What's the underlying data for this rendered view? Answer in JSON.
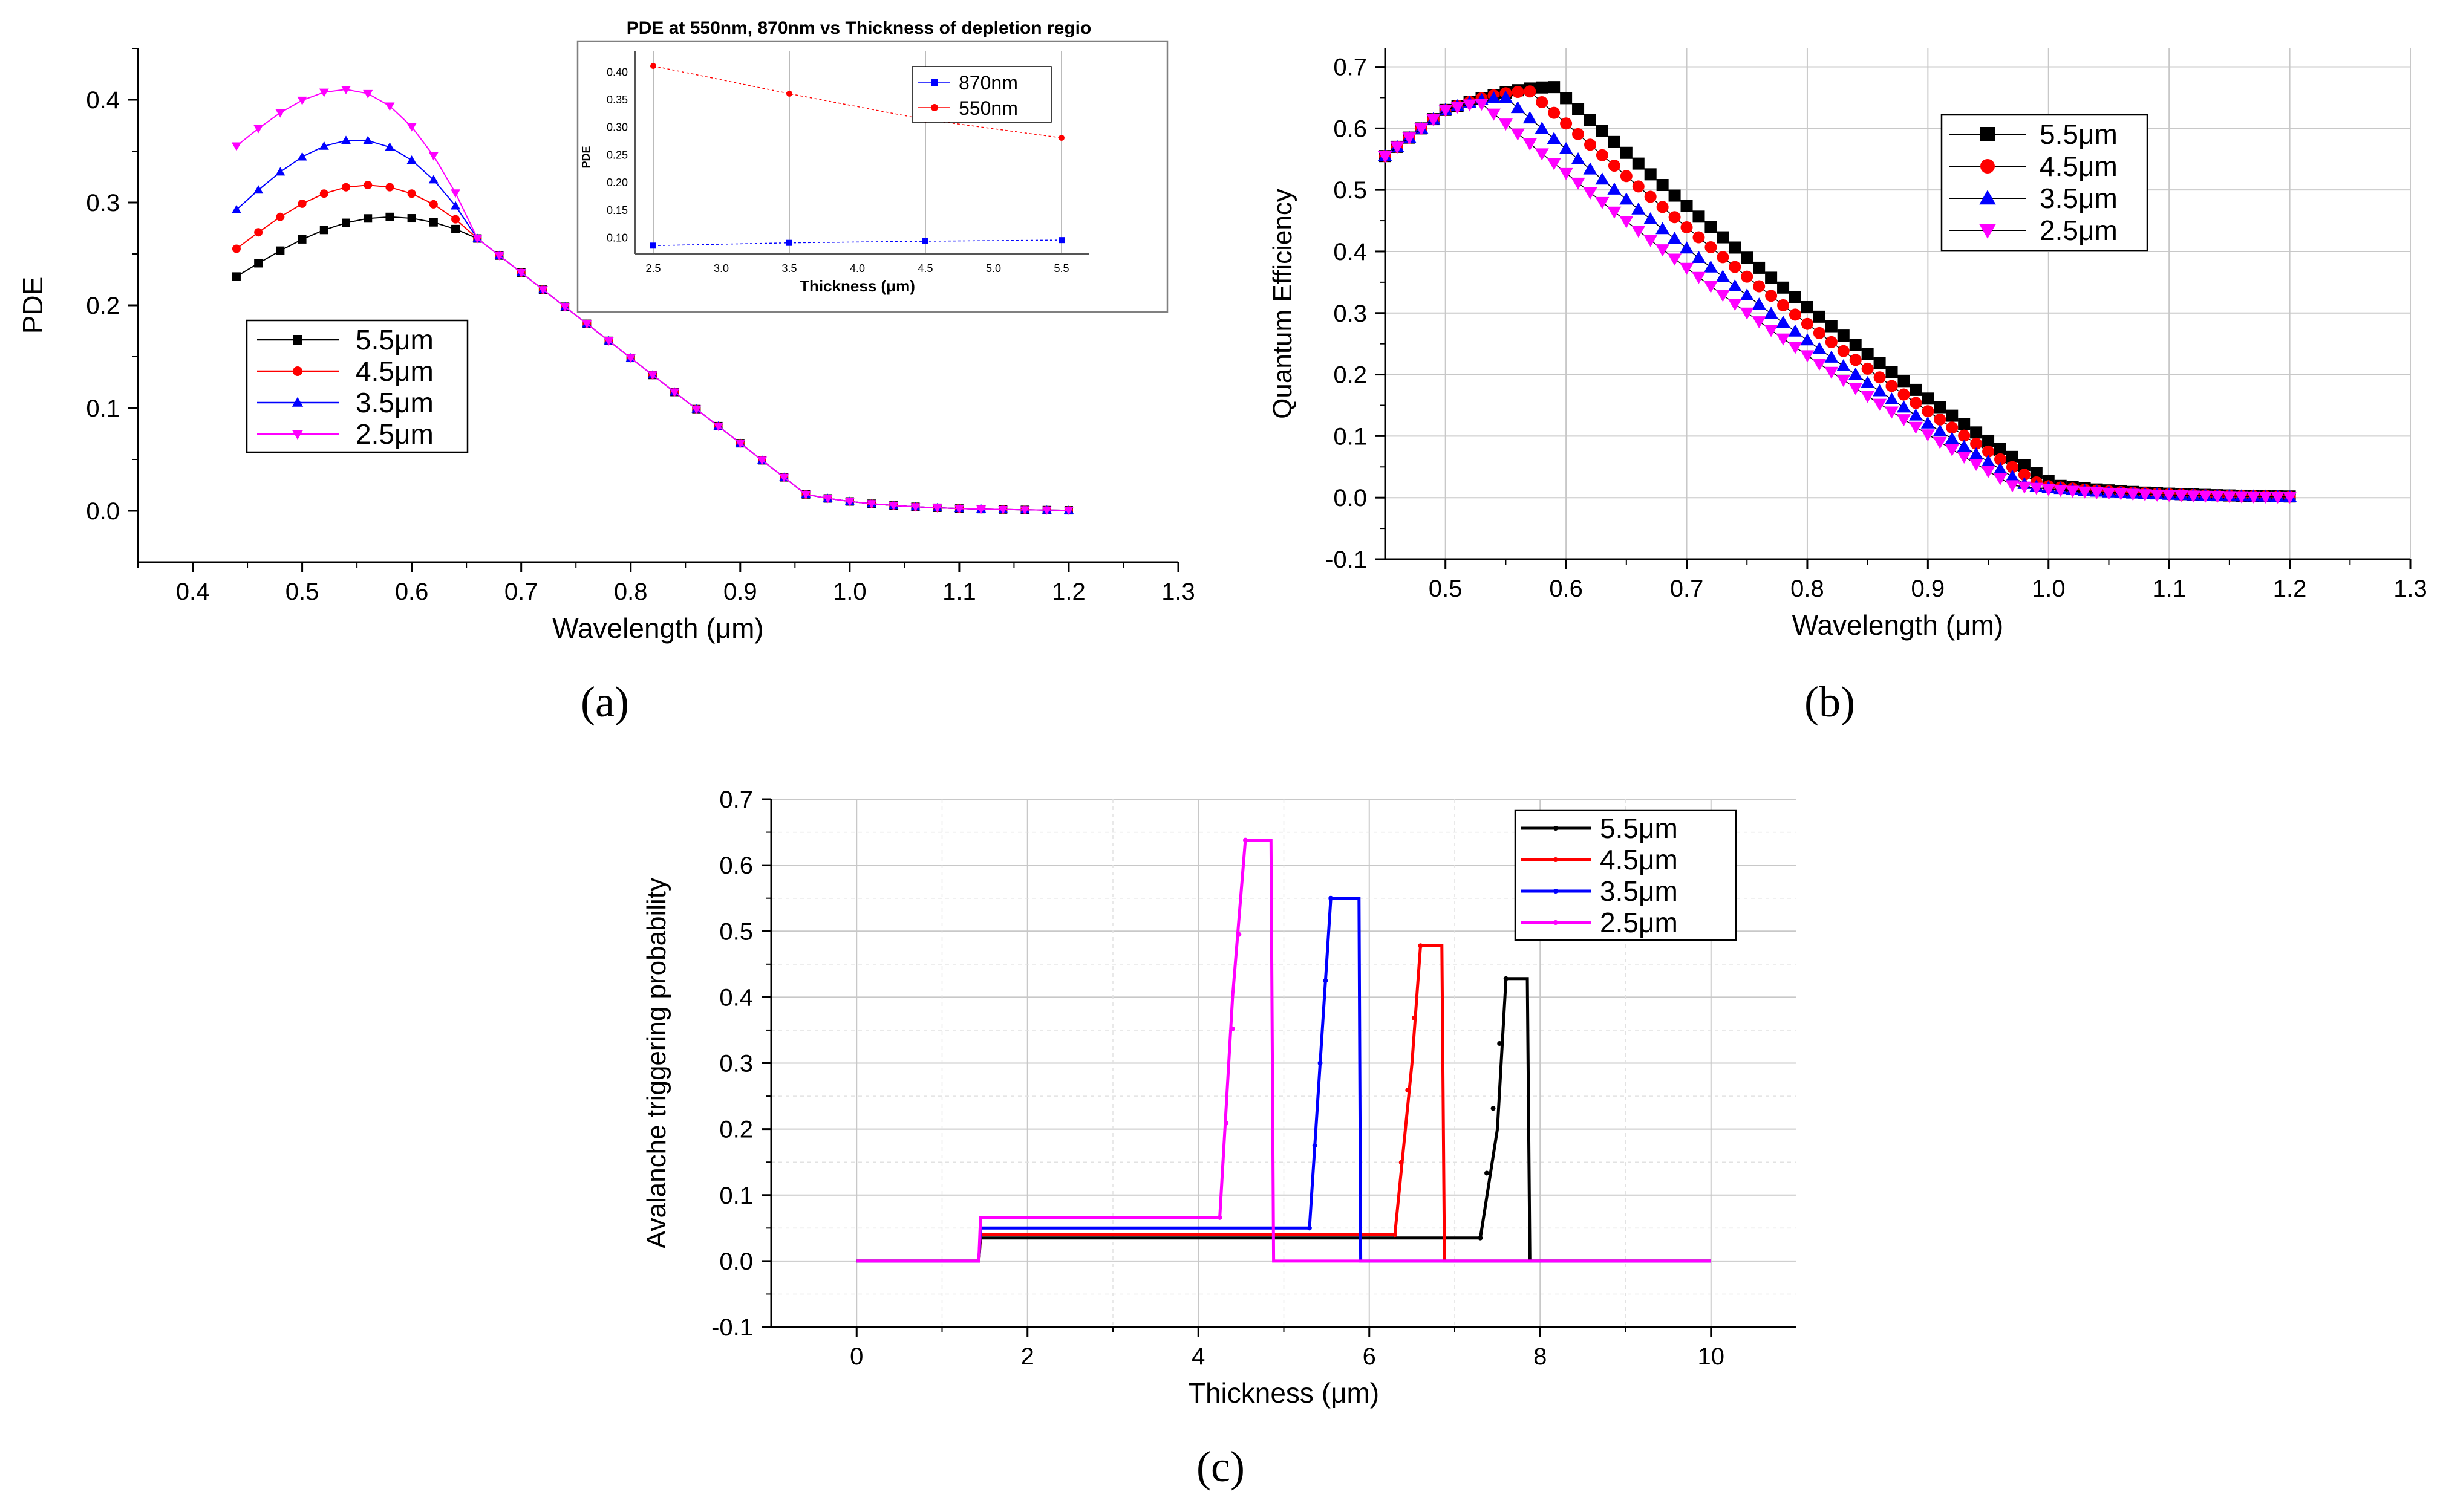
{
  "colors": {
    "black": "#000000",
    "red": "#ff0000",
    "blue": "#0000ff",
    "magenta": "#ff00ff"
  },
  "captions": [
    "(a)",
    "(b)",
    "(c)"
  ],
  "chart_data": [
    {
      "id": "a",
      "type": "line",
      "xlabel": "Wavelength (μm)",
      "ylabel": "PDE",
      "xlim": [
        0.35,
        1.3
      ],
      "ylim": [
        -0.05,
        0.45
      ],
      "xticks": [
        0.4,
        0.5,
        0.6,
        0.7,
        0.8,
        0.9,
        1.0,
        1.1,
        1.2,
        1.3
      ],
      "yticks": [
        0.0,
        0.1,
        0.2,
        0.3,
        0.4
      ],
      "legend_position": "middle-left",
      "series": [
        {
          "name": "5.5μm",
          "color": "#000000",
          "marker": "square",
          "peak": 0.286,
          "start": 0.228,
          "peak_x": 0.58
        },
        {
          "name": "4.5μm",
          "color": "#ff0000",
          "marker": "circle",
          "peak": 0.317,
          "start": 0.255,
          "peak_x": 0.56
        },
        {
          "name": "3.5μm",
          "color": "#0000ff",
          "marker": "triangle-up",
          "peak": 0.361,
          "start": 0.293,
          "peak_x": 0.55
        },
        {
          "name": "2.5μm",
          "color": "#ff00ff",
          "marker": "triangle-down",
          "peak": 0.41,
          "start": 0.355,
          "peak_x": 0.54
        }
      ],
      "inset": {
        "title": "PDE at 550nm, 870nm vs Thickness of  depletion regio",
        "xlabel": "Thickness (μm)",
        "ylabel": "PDE",
        "xlim": [
          2.5,
          5.5
        ],
        "ylim": [
          0.07,
          0.42
        ],
        "xticks": [
          "2.5",
          "3.0",
          "3.5",
          "4.0",
          "4.5",
          "5.0",
          "5.5"
        ],
        "yticks": [
          "0.10",
          "0.15",
          "0.20",
          "0.25",
          "0.30",
          "0.35",
          "0.40"
        ],
        "series": [
          {
            "name": "870nm",
            "color": "#0000ff",
            "x": [
              2.5,
              3.5,
              4.5,
              5.5
            ],
            "y": [
              0.085,
              0.09,
              0.093,
              0.095
            ]
          },
          {
            "name": "550nm",
            "color": "#ff0000",
            "x": [
              2.5,
              3.5,
              4.5,
              5.5
            ],
            "y": [
              0.41,
              0.36,
              0.313,
              0.28
            ]
          }
        ]
      }
    },
    {
      "id": "b",
      "type": "line",
      "xlabel": "Wavelength (μm)",
      "ylabel": "Quantum Efficiency",
      "xlim": [
        0.45,
        1.3
      ],
      "ylim": [
        -0.1,
        0.73
      ],
      "xticks": [
        0.5,
        0.6,
        0.7,
        0.8,
        0.9,
        1.0,
        1.1,
        1.2,
        1.3
      ],
      "yticks": [
        -0.1,
        0.0,
        0.1,
        0.2,
        0.3,
        0.4,
        0.5,
        0.6,
        0.7
      ],
      "legend_position": "top-right",
      "series": [
        {
          "name": "5.5μm",
          "color": "#000000",
          "marker": "square",
          "peak": 0.667,
          "shift": 0.06
        },
        {
          "name": "4.5μm",
          "color": "#ff0000",
          "marker": "circle",
          "peak": 0.66,
          "shift": 0.04
        },
        {
          "name": "3.5μm",
          "color": "#0000ff",
          "marker": "triangle-up",
          "peak": 0.65,
          "shift": 0.02
        },
        {
          "name": "2.5μm",
          "color": "#ff00ff",
          "marker": "triangle-down",
          "peak": 0.64,
          "shift": 0.0
        }
      ]
    },
    {
      "id": "c",
      "type": "line",
      "xlabel": "Thickness (μm)",
      "ylabel": "Avalanche triggering probability",
      "xlim": [
        -1,
        11
      ],
      "ylim": [
        -0.1,
        0.7
      ],
      "xticks": [
        0,
        2,
        4,
        6,
        8,
        10
      ],
      "yticks": [
        -0.1,
        0.0,
        0.1,
        0.2,
        0.3,
        0.4,
        0.5,
        0.6,
        0.7
      ],
      "legend_position": "top-right",
      "series": [
        {
          "name": "5.5μm",
          "color": "#000000",
          "x": [
            0,
            1.43,
            1.45,
            7.3,
            7.5,
            7.6,
            7.85,
            7.88,
            10
          ],
          "y": [
            0,
            0,
            0.035,
            0.035,
            0.2,
            0.428,
            0.428,
            0,
            0
          ]
        },
        {
          "name": "4.5μm",
          "color": "#ff0000",
          "x": [
            0,
            1.43,
            1.45,
            6.3,
            6.5,
            6.6,
            6.85,
            6.88,
            10
          ],
          "y": [
            0,
            0,
            0.04,
            0.04,
            0.3,
            0.478,
            0.478,
            0,
            0
          ]
        },
        {
          "name": "3.5μm",
          "color": "#0000ff",
          "x": [
            0,
            1.43,
            1.45,
            5.3,
            5.45,
            5.55,
            5.88,
            5.9,
            10
          ],
          "y": [
            0,
            0,
            0.05,
            0.05,
            0.35,
            0.55,
            0.55,
            0,
            0
          ]
        },
        {
          "name": "2.5μm",
          "color": "#ff00ff",
          "x": [
            0,
            1.43,
            1.45,
            4.25,
            4.4,
            4.55,
            4.85,
            4.88,
            10
          ],
          "y": [
            0,
            0,
            0.066,
            0.066,
            0.4,
            0.638,
            0.638,
            0,
            0
          ]
        }
      ]
    }
  ]
}
